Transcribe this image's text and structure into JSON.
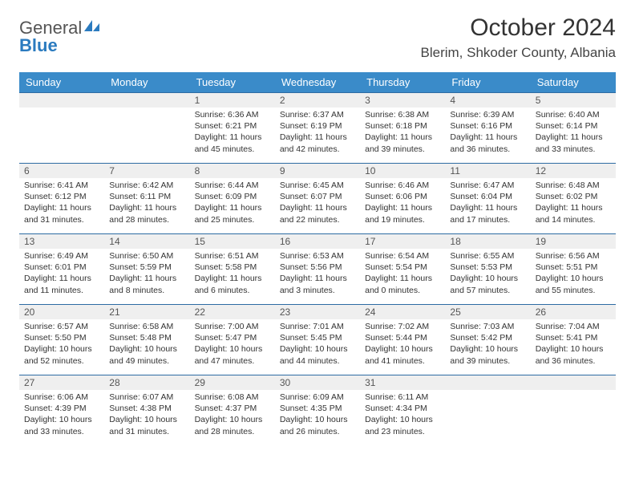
{
  "brand": {
    "part1": "General",
    "part2": "Blue"
  },
  "title": "October 2024",
  "location": "Blerim, Shkoder County, Albania",
  "colors": {
    "header_bg": "#3a8bc9",
    "header_text": "#ffffff",
    "daynum_bg": "#efefef",
    "row_border": "#2e6ca3",
    "brand_blue": "#2b7bbf"
  },
  "weekdays": [
    "Sunday",
    "Monday",
    "Tuesday",
    "Wednesday",
    "Thursday",
    "Friday",
    "Saturday"
  ],
  "weeks": [
    [
      null,
      null,
      {
        "n": "1",
        "sr": "Sunrise: 6:36 AM",
        "ss": "Sunset: 6:21 PM",
        "d1": "Daylight: 11 hours",
        "d2": "and 45 minutes."
      },
      {
        "n": "2",
        "sr": "Sunrise: 6:37 AM",
        "ss": "Sunset: 6:19 PM",
        "d1": "Daylight: 11 hours",
        "d2": "and 42 minutes."
      },
      {
        "n": "3",
        "sr": "Sunrise: 6:38 AM",
        "ss": "Sunset: 6:18 PM",
        "d1": "Daylight: 11 hours",
        "d2": "and 39 minutes."
      },
      {
        "n": "4",
        "sr": "Sunrise: 6:39 AM",
        "ss": "Sunset: 6:16 PM",
        "d1": "Daylight: 11 hours",
        "d2": "and 36 minutes."
      },
      {
        "n": "5",
        "sr": "Sunrise: 6:40 AM",
        "ss": "Sunset: 6:14 PM",
        "d1": "Daylight: 11 hours",
        "d2": "and 33 minutes."
      }
    ],
    [
      {
        "n": "6",
        "sr": "Sunrise: 6:41 AM",
        "ss": "Sunset: 6:12 PM",
        "d1": "Daylight: 11 hours",
        "d2": "and 31 minutes."
      },
      {
        "n": "7",
        "sr": "Sunrise: 6:42 AM",
        "ss": "Sunset: 6:11 PM",
        "d1": "Daylight: 11 hours",
        "d2": "and 28 minutes."
      },
      {
        "n": "8",
        "sr": "Sunrise: 6:44 AM",
        "ss": "Sunset: 6:09 PM",
        "d1": "Daylight: 11 hours",
        "d2": "and 25 minutes."
      },
      {
        "n": "9",
        "sr": "Sunrise: 6:45 AM",
        "ss": "Sunset: 6:07 PM",
        "d1": "Daylight: 11 hours",
        "d2": "and 22 minutes."
      },
      {
        "n": "10",
        "sr": "Sunrise: 6:46 AM",
        "ss": "Sunset: 6:06 PM",
        "d1": "Daylight: 11 hours",
        "d2": "and 19 minutes."
      },
      {
        "n": "11",
        "sr": "Sunrise: 6:47 AM",
        "ss": "Sunset: 6:04 PM",
        "d1": "Daylight: 11 hours",
        "d2": "and 17 minutes."
      },
      {
        "n": "12",
        "sr": "Sunrise: 6:48 AM",
        "ss": "Sunset: 6:02 PM",
        "d1": "Daylight: 11 hours",
        "d2": "and 14 minutes."
      }
    ],
    [
      {
        "n": "13",
        "sr": "Sunrise: 6:49 AM",
        "ss": "Sunset: 6:01 PM",
        "d1": "Daylight: 11 hours",
        "d2": "and 11 minutes."
      },
      {
        "n": "14",
        "sr": "Sunrise: 6:50 AM",
        "ss": "Sunset: 5:59 PM",
        "d1": "Daylight: 11 hours",
        "d2": "and 8 minutes."
      },
      {
        "n": "15",
        "sr": "Sunrise: 6:51 AM",
        "ss": "Sunset: 5:58 PM",
        "d1": "Daylight: 11 hours",
        "d2": "and 6 minutes."
      },
      {
        "n": "16",
        "sr": "Sunrise: 6:53 AM",
        "ss": "Sunset: 5:56 PM",
        "d1": "Daylight: 11 hours",
        "d2": "and 3 minutes."
      },
      {
        "n": "17",
        "sr": "Sunrise: 6:54 AM",
        "ss": "Sunset: 5:54 PM",
        "d1": "Daylight: 11 hours",
        "d2": "and 0 minutes."
      },
      {
        "n": "18",
        "sr": "Sunrise: 6:55 AM",
        "ss": "Sunset: 5:53 PM",
        "d1": "Daylight: 10 hours",
        "d2": "and 57 minutes."
      },
      {
        "n": "19",
        "sr": "Sunrise: 6:56 AM",
        "ss": "Sunset: 5:51 PM",
        "d1": "Daylight: 10 hours",
        "d2": "and 55 minutes."
      }
    ],
    [
      {
        "n": "20",
        "sr": "Sunrise: 6:57 AM",
        "ss": "Sunset: 5:50 PM",
        "d1": "Daylight: 10 hours",
        "d2": "and 52 minutes."
      },
      {
        "n": "21",
        "sr": "Sunrise: 6:58 AM",
        "ss": "Sunset: 5:48 PM",
        "d1": "Daylight: 10 hours",
        "d2": "and 49 minutes."
      },
      {
        "n": "22",
        "sr": "Sunrise: 7:00 AM",
        "ss": "Sunset: 5:47 PM",
        "d1": "Daylight: 10 hours",
        "d2": "and 47 minutes."
      },
      {
        "n": "23",
        "sr": "Sunrise: 7:01 AM",
        "ss": "Sunset: 5:45 PM",
        "d1": "Daylight: 10 hours",
        "d2": "and 44 minutes."
      },
      {
        "n": "24",
        "sr": "Sunrise: 7:02 AM",
        "ss": "Sunset: 5:44 PM",
        "d1": "Daylight: 10 hours",
        "d2": "and 41 minutes."
      },
      {
        "n": "25",
        "sr": "Sunrise: 7:03 AM",
        "ss": "Sunset: 5:42 PM",
        "d1": "Daylight: 10 hours",
        "d2": "and 39 minutes."
      },
      {
        "n": "26",
        "sr": "Sunrise: 7:04 AM",
        "ss": "Sunset: 5:41 PM",
        "d1": "Daylight: 10 hours",
        "d2": "and 36 minutes."
      }
    ],
    [
      {
        "n": "27",
        "sr": "Sunrise: 6:06 AM",
        "ss": "Sunset: 4:39 PM",
        "d1": "Daylight: 10 hours",
        "d2": "and 33 minutes."
      },
      {
        "n": "28",
        "sr": "Sunrise: 6:07 AM",
        "ss": "Sunset: 4:38 PM",
        "d1": "Daylight: 10 hours",
        "d2": "and 31 minutes."
      },
      {
        "n": "29",
        "sr": "Sunrise: 6:08 AM",
        "ss": "Sunset: 4:37 PM",
        "d1": "Daylight: 10 hours",
        "d2": "and 28 minutes."
      },
      {
        "n": "30",
        "sr": "Sunrise: 6:09 AM",
        "ss": "Sunset: 4:35 PM",
        "d1": "Daylight: 10 hours",
        "d2": "and 26 minutes."
      },
      {
        "n": "31",
        "sr": "Sunrise: 6:11 AM",
        "ss": "Sunset: 4:34 PM",
        "d1": "Daylight: 10 hours",
        "d2": "and 23 minutes."
      },
      null,
      null
    ]
  ]
}
